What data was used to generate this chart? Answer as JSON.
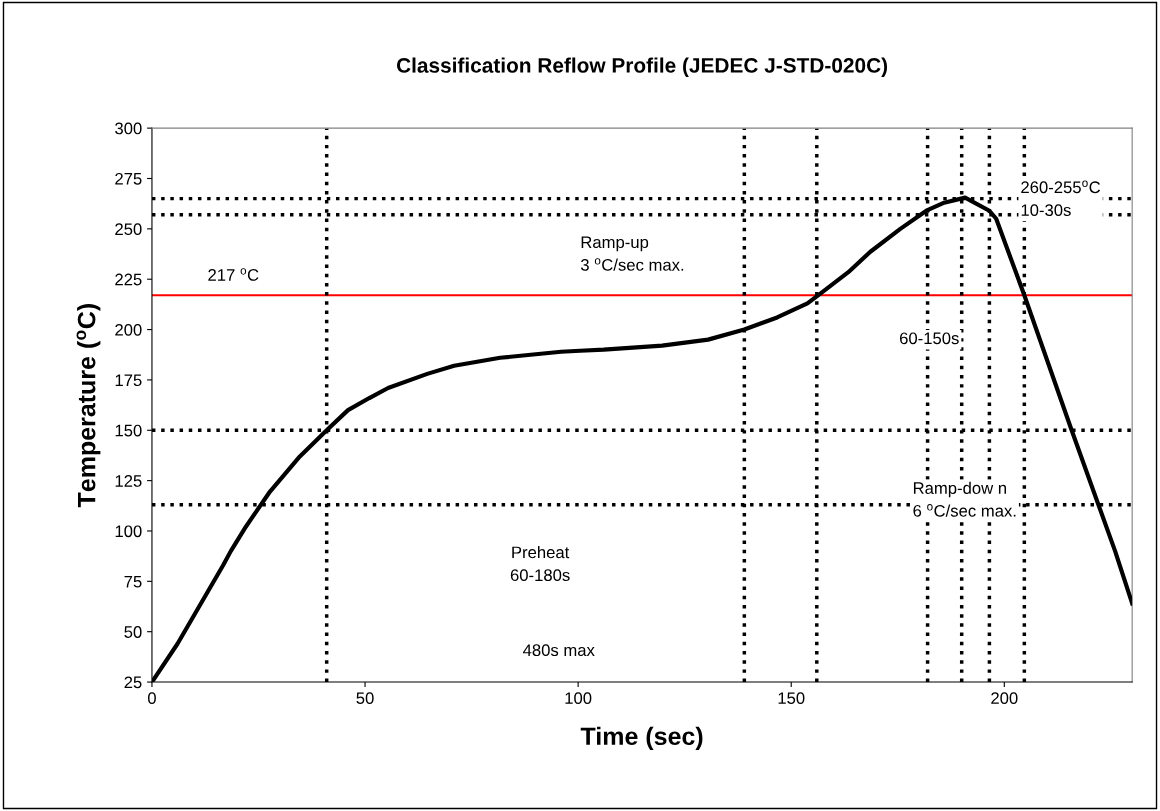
{
  "chart_data": {
    "type": "line",
    "title": "Classification Reflow Profile (JEDEC J-STD-020C)",
    "xlabel": "Time (sec)",
    "ylabel": "Temperature ($^{o}$C)",
    "x": [
      0,
      6,
      16.7,
      18.5,
      22,
      27.5,
      34.7,
      41,
      46,
      51,
      55.4,
      64.6,
      70.9,
      81.7,
      96,
      100.5,
      106,
      119.7,
      130.5,
      139,
      146.7,
      153.8,
      156.3,
      163.4,
      168.5,
      175.6,
      181.7,
      185.9,
      190.8,
      196.5,
      198.1,
      204.7,
      215.7,
      226,
      230
    ],
    "series": [
      {
        "color": "#000000",
        "values": [
          25,
          44,
          83,
          90,
          102,
          119,
          137,
          150,
          160,
          166,
          171,
          178,
          182,
          186,
          189,
          189.5,
          190,
          192,
          195,
          200,
          206,
          213,
          217,
          228.5,
          238.5,
          250,
          259,
          263,
          265.5,
          259,
          255,
          217,
          150.6,
          90,
          64
        ]
      }
    ],
    "xlim": [
      0,
      230
    ],
    "xticks": [
      0,
      50,
      100,
      150,
      200
    ],
    "ylim": [
      25,
      300
    ],
    "yticks": [
      25,
      50,
      75,
      100,
      125,
      150,
      175,
      200,
      225,
      250,
      275,
      300
    ],
    "grid": false,
    "marker": "none",
    "line_style": "solid",
    "ref_lines": [
      {
        "axis": "y",
        "value": 217,
        "label": "217 $^{o}$C",
        "color": "#ff0000",
        "line_style": "solid"
      },
      {
        "axis": "y",
        "value": 265,
        "color": "#000000",
        "line_style": "dotted"
      },
      {
        "axis": "y",
        "value": 257,
        "color": "#000000",
        "line_style": "dotted"
      },
      {
        "axis": "y",
        "value": 150,
        "color": "#000000",
        "line_style": "dotted"
      },
      {
        "axis": "y",
        "value": 113,
        "color": "#000000",
        "line_style": "dotted"
      },
      {
        "axis": "x",
        "value": 41,
        "color": "#000000",
        "line_style": "dotted"
      },
      {
        "axis": "x",
        "value": 139,
        "color": "#000000",
        "line_style": "dotted"
      },
      {
        "axis": "x",
        "value": 156,
        "color": "#000000",
        "line_style": "dotted"
      },
      {
        "axis": "x",
        "value": 182,
        "color": "#000000",
        "line_style": "dotted"
      },
      {
        "axis": "x",
        "value": 190,
        "color": "#000000",
        "line_style": "dotted"
      },
      {
        "axis": "x",
        "value": 196.5,
        "color": "#000000",
        "line_style": "dotted"
      },
      {
        "axis": "x",
        "value": 204.7,
        "color": "#000000",
        "line_style": "dotted"
      }
    ],
    "annotations": [
      "Ramp-up\n3 $^{o}$C/sec max.",
      "260-255$^{o}$C\n10-30s",
      "60-150s",
      "Ramp-dow n\n6 $^{o}$C/sec max.",
      "Preheat\n60-180s",
      "480s max"
    ]
  }
}
